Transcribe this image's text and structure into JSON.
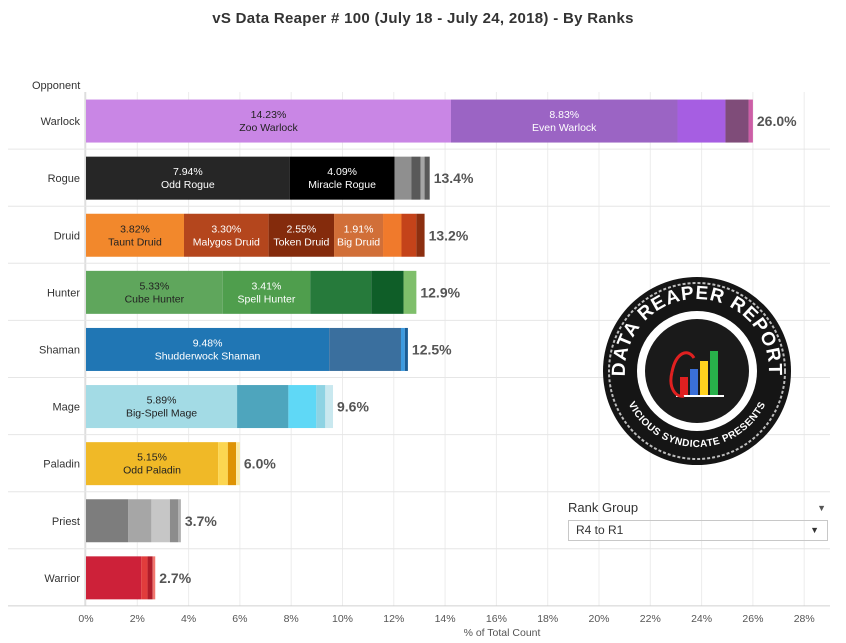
{
  "title": "vS Data Reaper #  100 (July 18 - July 24, 2018) - By Ranks",
  "chart_data": {
    "type": "bar",
    "orientation": "horizontal",
    "stacked": true,
    "y_axis_header": "Opponent",
    "xlabel": "% of Total Count",
    "xlim": [
      0,
      29
    ],
    "xticks": [
      0,
      2,
      4,
      6,
      8,
      10,
      12,
      14,
      16,
      18,
      20,
      22,
      24,
      26,
      28
    ],
    "xtick_labels": [
      "0%",
      "2%",
      "4%",
      "6%",
      "8%",
      "10%",
      "12%",
      "14%",
      "16%",
      "18%",
      "20%",
      "22%",
      "24%",
      "26%",
      "28%"
    ],
    "grid": true,
    "classes": [
      {
        "name": "Warlock",
        "total_label": "26.0%",
        "segments": [
          {
            "value": 14.23,
            "label": "Zoo Warlock",
            "pct_label": "14.23%",
            "color": "#c986e5",
            "text_color": "#222222"
          },
          {
            "value": 8.83,
            "label": "Even Warlock",
            "pct_label": "8.83%",
            "color": "#9b64c4",
            "text_color": "#ffffff"
          },
          {
            "value": 1.87,
            "color": "#a65ee2"
          },
          {
            "value": 0.9,
            "color": "#7f4c79"
          },
          {
            "value": 0.17,
            "color": "#cc5ea6"
          }
        ]
      },
      {
        "name": "Rogue",
        "total_label": "13.4%",
        "segments": [
          {
            "value": 7.94,
            "label": "Odd Rogue",
            "pct_label": "7.94%",
            "color": "#262626",
            "text_color": "#ffffff"
          },
          {
            "value": 4.09,
            "label": "Miracle Rogue",
            "pct_label": "4.09%",
            "color": "#000000",
            "text_color": "#ffffff"
          },
          {
            "value": 0.66,
            "color": "#8f8f8f"
          },
          {
            "value": 0.35,
            "color": "#595959"
          },
          {
            "value": 0.16,
            "color": "#a6a6a6"
          },
          {
            "value": 0.2,
            "color": "#5a5a5a"
          }
        ]
      },
      {
        "name": "Druid",
        "total_label": "13.2%",
        "segments": [
          {
            "value": 3.82,
            "label": "Taunt Druid",
            "pct_label": "3.82%",
            "color": "#f2882c",
            "text_color": "#222222"
          },
          {
            "value": 3.3,
            "label": "Malygos Druid",
            "pct_label": "3.30%",
            "color": "#b4461d",
            "text_color": "#ffffff"
          },
          {
            "value": 2.55,
            "label": "Token Druid",
            "pct_label": "2.55%",
            "color": "#842b0c",
            "text_color": "#ffffff"
          },
          {
            "value": 1.91,
            "label": "Big Druid",
            "pct_label": "1.91%",
            "color": "#d16f38",
            "text_color": "#ffffff"
          },
          {
            "value": 0.72,
            "color": "#f07a2c"
          },
          {
            "value": 0.58,
            "color": "#c4431a"
          },
          {
            "value": 0.32,
            "color": "#8c2f10"
          }
        ]
      },
      {
        "name": "Hunter",
        "total_label": "12.9%",
        "segments": [
          {
            "value": 5.33,
            "label": "Cube Hunter",
            "pct_label": "5.33%",
            "color": "#5fa65c",
            "text_color": "#222222"
          },
          {
            "value": 3.41,
            "label": "Spell Hunter",
            "pct_label": "3.41%",
            "color": "#4f9e4d",
            "text_color": "#ffffff"
          },
          {
            "value": 2.38,
            "color": "#267a3b"
          },
          {
            "value": 1.26,
            "color": "#0f5e28"
          },
          {
            "value": 0.5,
            "color": "#7fbf6b"
          }
        ]
      },
      {
        "name": "Shaman",
        "total_label": "12.5%",
        "segments": [
          {
            "value": 9.48,
            "label": "Shudderwock Shaman",
            "pct_label": "9.48%",
            "color": "#2076b4",
            "text_color": "#ffffff"
          },
          {
            "value": 2.8,
            "color": "#3a6f9e"
          },
          {
            "value": 0.15,
            "color": "#3d9be0"
          },
          {
            "value": 0.12,
            "color": "#1a5d96"
          }
        ]
      },
      {
        "name": "Mage",
        "total_label": "9.6%",
        "segments": [
          {
            "value": 5.89,
            "label": "Big-Spell Mage",
            "pct_label": "5.89%",
            "color": "#a3dbe5",
            "text_color": "#222222"
          },
          {
            "value": 2.0,
            "color": "#4ea5bd"
          },
          {
            "value": 1.09,
            "color": "#5fd8f6"
          },
          {
            "value": 0.35,
            "color": "#8ed3e3"
          },
          {
            "value": 0.3,
            "color": "#c9e8ef"
          }
        ]
      },
      {
        "name": "Paladin",
        "total_label": "6.0%",
        "segments": [
          {
            "value": 5.15,
            "label": "Odd Paladin",
            "pct_label": "5.15%",
            "color": "#f0b927",
            "text_color": "#222222"
          },
          {
            "value": 0.38,
            "color": "#fcd651"
          },
          {
            "value": 0.32,
            "color": "#de9204"
          },
          {
            "value": 0.15,
            "color": "#fbe9a3"
          }
        ]
      },
      {
        "name": "Priest",
        "total_label": "3.7%",
        "segments": [
          {
            "value": 1.65,
            "color": "#7d7d7d"
          },
          {
            "value": 0.9,
            "color": "#a6a6a6"
          },
          {
            "value": 0.72,
            "color": "#c6c6c6"
          },
          {
            "value": 0.33,
            "color": "#8c8c8c"
          },
          {
            "value": 0.1,
            "color": "#b0b0b0"
          }
        ]
      },
      {
        "name": "Warrior",
        "total_label": "2.7%",
        "segments": [
          {
            "value": 2.15,
            "color": "#cd2139"
          },
          {
            "value": 0.25,
            "color": "#e13c3c"
          },
          {
            "value": 0.2,
            "color": "#b01c2a"
          },
          {
            "value": 0.1,
            "color": "#f2766e"
          }
        ]
      }
    ]
  },
  "logo": {
    "top_text": "DATA REAPER REPORT",
    "bottom_text": "VICIOUS SYNDICATE PRESENTS",
    "bar_colors": [
      "#e02020",
      "#3a6fd8",
      "#ffd21f",
      "#28b04a"
    ]
  },
  "rank_group": {
    "title": "Rank Group",
    "selected": "R4 to R1"
  }
}
